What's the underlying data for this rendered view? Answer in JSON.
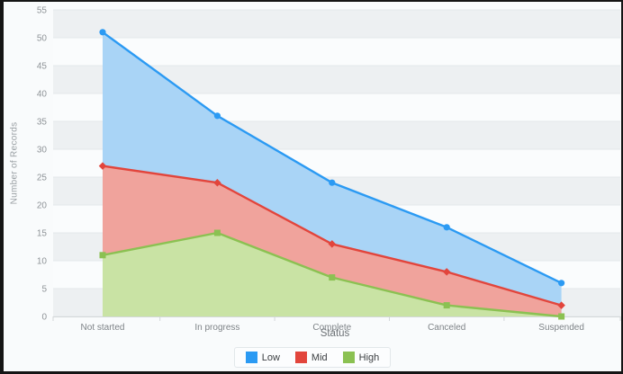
{
  "chart_data": {
    "type": "area",
    "categories": [
      "Not started",
      "In progress",
      "Complete",
      "Canceled",
      "Suspended"
    ],
    "series": [
      {
        "name": "Low",
        "color": "#2b9af3",
        "fill": "#a9d4f6",
        "marker": "circle",
        "values": [
          51,
          36,
          24,
          16,
          6
        ]
      },
      {
        "name": "Mid",
        "color": "#e2453c",
        "fill": "#f0a39c",
        "marker": "diamond",
        "values": [
          27,
          24,
          13,
          8,
          2
        ]
      },
      {
        "name": "High",
        "color": "#8bc152",
        "fill": "#c9e3a4",
        "marker": "square",
        "values": [
          11,
          15,
          7,
          2,
          0
        ]
      }
    ],
    "xlabel": "Status",
    "ylabel": "Number of Records",
    "ylim": [
      0,
      55
    ],
    "ytick_step": 5,
    "grid": true,
    "legend_position": "bottom"
  },
  "style_colors": {
    "band_gray": "#edf0f2",
    "band_white": "#fafcfd",
    "gridline": "#e4e8ea",
    "axis_line": "#d3d7d9",
    "tick_text": "#8f9498"
  }
}
